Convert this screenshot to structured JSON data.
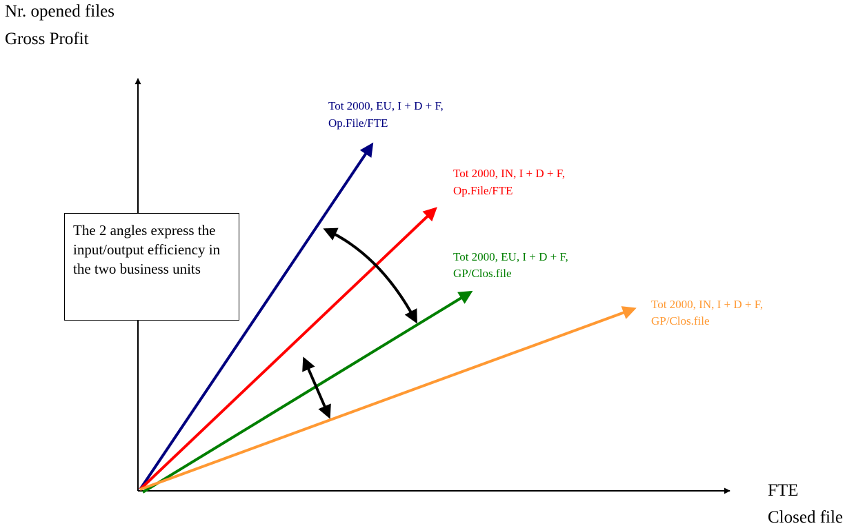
{
  "y_axis_label": {
    "line1": "Nr. opened files",
    "line2": "Gross Profit"
  },
  "x_axis_label": {
    "line1": "FTE",
    "line2": "Closed file"
  },
  "vectors": [
    {
      "id": "eu-opfile",
      "line1": "Tot 2000, EU, I + D + F,",
      "line2": "Op.File/FTE",
      "color": "#00007f"
    },
    {
      "id": "in-opfile",
      "line1": "Tot 2000, IN, I + D + F,",
      "line2": "Op.File/FTE",
      "color": "#ff0000"
    },
    {
      "id": "eu-gpclos",
      "line1": "Tot 2000, EU, I + D + F,",
      "line2": "GP/Clos.file",
      "color": "#007f00"
    },
    {
      "id": "in-gpclos",
      "line1": "Tot 2000, IN, I + D + F,",
      "line2": "GP/Clos.file",
      "color": "#ff9933"
    }
  ],
  "callout": {
    "text": "The 2 angles express the input/output efficiency in the two business units"
  },
  "colors": {
    "axis": "#000000",
    "angle_marker": "#000000"
  }
}
